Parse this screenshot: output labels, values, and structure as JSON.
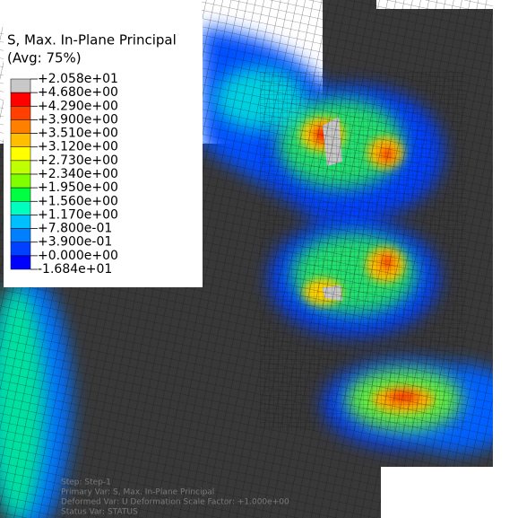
{
  "legend": {
    "title": [
      "S, Max. In-Plane Principal",
      "(Avg: 75%)"
    ],
    "labels": [
      "+2.058e+01",
      "+4.680e+00",
      "+4.290e+00",
      "+3.900e+00",
      "+3.510e+00",
      "+3.120e+00",
      "+2.730e+00",
      "+2.340e+00",
      "+1.950e+00",
      "+1.560e+00",
      "+1.170e+00",
      "+7.800e-01",
      "+3.900e-01",
      "+0.000e+00",
      "-1.684e+01"
    ],
    "colors": [
      "#c8c8c8",
      "#ff0000",
      "#ff4000",
      "#ff8000",
      "#ffbf00",
      "#ffff00",
      "#bfff00",
      "#80ff00",
      "#00ff40",
      "#00ffbf",
      "#00bfff",
      "#0080ff",
      "#0040ff",
      "#0000ff",
      "#383838"
    ]
  },
  "status": [
    "Step: Step-1",
    "Primary Var: S, Max. In-Plane Principal",
    "Deformed Var: U   Deformation Scale Factor: +1.000e+00",
    "Status Var: STATUS"
  ]
}
